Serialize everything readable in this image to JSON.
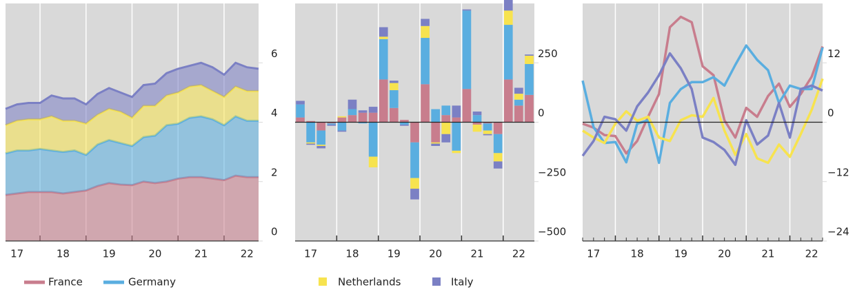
{
  "chart_data": [
    {
      "type": "area",
      "categories": [
        null,
        "17",
        null,
        null,
        null,
        "18",
        null,
        null,
        null,
        "19",
        null,
        null,
        null,
        "20",
        null,
        null,
        null,
        "21",
        null,
        null,
        null,
        "22",
        null
      ],
      "series": [
        {
          "name": "France",
          "color": "#c87d8d",
          "values": [
            1.55,
            1.6,
            1.65,
            1.65,
            1.65,
            1.6,
            1.65,
            1.7,
            1.85,
            1.95,
            1.9,
            1.88,
            2.0,
            1.95,
            2.0,
            2.1,
            2.15,
            2.15,
            2.1,
            2.05,
            2.2,
            2.15,
            2.15
          ]
        },
        {
          "name": "Germany",
          "color": "#5aaee0",
          "values": [
            1.4,
            1.45,
            1.4,
            1.45,
            1.4,
            1.4,
            1.4,
            1.2,
            1.4,
            1.45,
            1.4,
            1.32,
            1.5,
            1.6,
            1.9,
            1.85,
            2.0,
            2.05,
            2.0,
            1.85,
            2.0,
            1.9,
            1.9
          ]
        },
        {
          "name": "Netherlands",
          "color": "#f7e34f",
          "values": [
            0.95,
            1.0,
            1.05,
            1.0,
            1.15,
            1.05,
            1.0,
            1.05,
            1.0,
            1.05,
            1.05,
            0.95,
            1.05,
            1.0,
            1.0,
            1.05,
            1.05,
            1.05,
            0.95,
            0.95,
            1.0,
            1.0,
            1.0
          ]
        },
        {
          "name": "Italy",
          "color": "#7b80c4",
          "values": [
            0.55,
            0.55,
            0.55,
            0.55,
            0.7,
            0.75,
            0.75,
            0.65,
            0.7,
            0.7,
            0.65,
            0.7,
            0.7,
            0.75,
            0.75,
            0.8,
            0.7,
            0.75,
            0.8,
            0.75,
            0.8,
            0.8,
            0.75
          ]
        }
      ],
      "ylim": [
        0,
        8
      ],
      "yticks": [
        0,
        2,
        4,
        6
      ],
      "zero_line": false
    },
    {
      "type": "bar",
      "categories": [
        null,
        "17",
        null,
        null,
        null,
        "18",
        null,
        null,
        null,
        "19",
        null,
        null,
        null,
        "20",
        null,
        null,
        null,
        "21",
        null,
        null,
        null,
        "22",
        null
      ],
      "series": [
        {
          "name": "France",
          "color": "#c87d8d",
          "values": [
            20,
            5,
            -35,
            -5,
            20,
            30,
            40,
            40,
            180,
            60,
            10,
            -85,
            160,
            -85,
            30,
            20,
            140,
            -10,
            -5,
            -50,
            180,
            70,
            115
          ]
        },
        {
          "name": "Germany",
          "color": "#5aaee0",
          "values": [
            55,
            -85,
            -60,
            -5,
            -35,
            25,
            -5,
            -145,
            170,
            75,
            -10,
            -150,
            195,
            55,
            40,
            -120,
            330,
            30,
            -30,
            -80,
            230,
            25,
            130
          ]
        },
        {
          "name": "Netherlands",
          "color": "#f7e34f",
          "values": [
            0,
            -5,
            -5,
            0,
            5,
            0,
            0,
            -45,
            10,
            30,
            0,
            -45,
            50,
            -5,
            -50,
            -10,
            0,
            -30,
            -15,
            -35,
            60,
            25,
            35
          ]
        },
        {
          "name": "Italy",
          "color": "#7b80c4",
          "values": [
            15,
            -5,
            -10,
            -5,
            -5,
            40,
            10,
            25,
            40,
            10,
            -5,
            -45,
            30,
            -10,
            -35,
            50,
            5,
            15,
            -5,
            -30,
            55,
            25,
            5
          ]
        }
      ],
      "ylim": [
        -500,
        500
      ],
      "yticks": [
        {
          "value": -500,
          "label": "−500"
        },
        {
          "value": -250,
          "label": "−250"
        },
        0,
        250
      ],
      "zero_line": true
    },
    {
      "type": "line",
      "categories": [
        null,
        "17",
        null,
        null,
        null,
        "18",
        null,
        null,
        null,
        "19",
        null,
        null,
        null,
        "20",
        null,
        null,
        null,
        "21",
        null,
        null,
        null,
        "22",
        null
      ],
      "series": [
        {
          "name": "France",
          "color": "#c87d8d",
          "values": [
            -0.3,
            -1.1,
            -2.6,
            -2.8,
            -6.3,
            -3.8,
            1.1,
            5.7,
            19.2,
            21.3,
            20.2,
            11.3,
            9.5,
            0.4,
            -3.1,
            2.9,
            1.1,
            5.3,
            7.8,
            3.1,
            5.7,
            9.2,
            15.3
          ]
        },
        {
          "name": "Germany",
          "color": "#5aaee0",
          "values": [
            8.4,
            -1.0,
            -4.2,
            -4.0,
            -8.1,
            -0.3,
            0.4,
            -8.2,
            3.9,
            6.7,
            8.1,
            8.1,
            9.1,
            7.4,
            11.6,
            15.5,
            12.6,
            10.5,
            3.9,
            7.4,
            6.7,
            6.7,
            15.1
          ]
        },
        {
          "name": "Netherlands",
          "color": "#f7e34f",
          "values": [
            -1.7,
            -3.1,
            -4.2,
            -0.3,
            2.2,
            0.3,
            1.1,
            -3.1,
            -3.8,
            0.4,
            1.4,
            1.1,
            4.9,
            -1.7,
            -6.6,
            -2.4,
            -7.3,
            -8.2,
            -4.5,
            -7.0,
            -2.4,
            2.5,
            8.8
          ]
        },
        {
          "name": "Italy",
          "color": "#7b80c4",
          "values": [
            -6.8,
            -3.8,
            1.1,
            0.6,
            -1.7,
            3.2,
            6.0,
            9.5,
            13.9,
            10.9,
            6.7,
            -3.1,
            -4.0,
            -5.6,
            -8.6,
            0.4,
            -4.5,
            -2.7,
            3.9,
            -3.1,
            6.7,
            7.4,
            6.4
          ]
        }
      ],
      "ylim": [
        -24,
        24
      ],
      "yticks": [
        {
          "value": -24,
          "label": "−24"
        },
        {
          "value": -12,
          "label": "−12"
        },
        0,
        12
      ],
      "zero_line": true
    }
  ]
}
